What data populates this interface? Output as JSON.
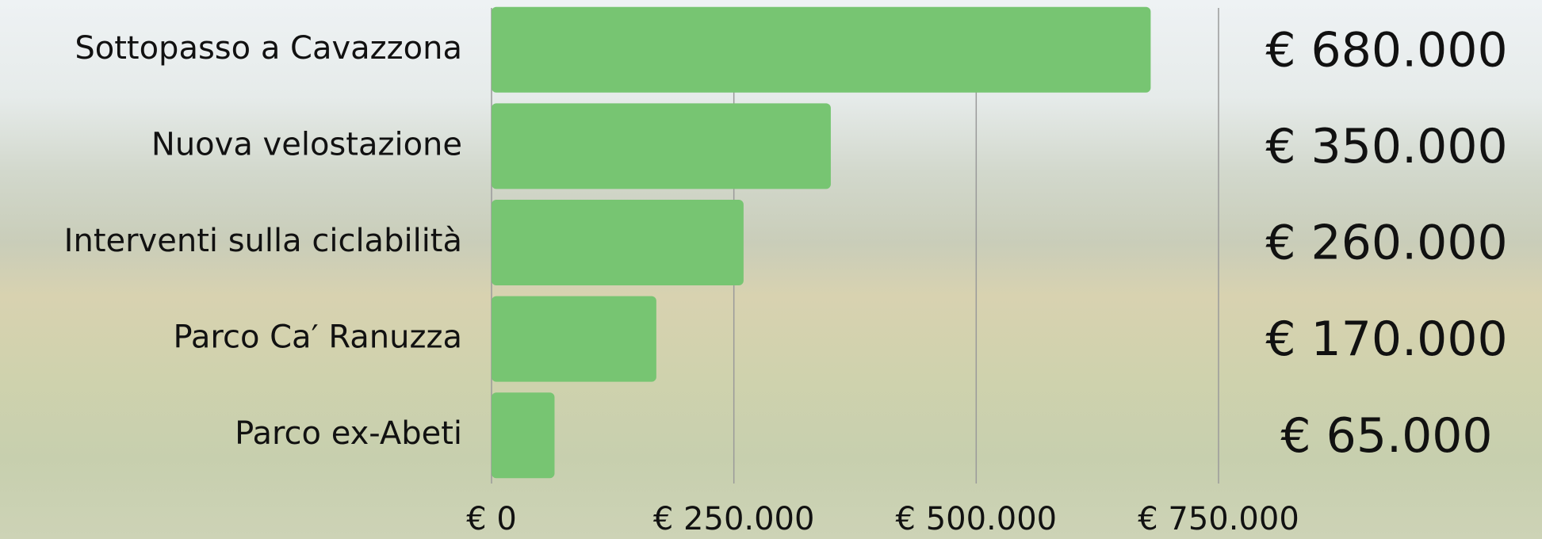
{
  "chart_data": {
    "type": "bar",
    "orientation": "horizontal",
    "categories": [
      "Sottopasso a Cavazzona",
      "Nuova velostazione",
      "Interventi sulla ciclabilità",
      "Parco Ca′ Ranuzza",
      "Parco ex-Abeti"
    ],
    "values": [
      680000,
      350000,
      260000,
      170000,
      65000
    ],
    "value_labels": [
      "€ 680.000",
      "€ 350.000",
      "€ 260.000",
      "€ 170.000",
      "€ 65.000"
    ],
    "color": "#77c572",
    "xlim": [
      0,
      750000
    ],
    "xticks": [
      {
        "value": 0,
        "label": "€ 0"
      },
      {
        "value": 250000,
        "label": "€ 250.000"
      },
      {
        "value": 500000,
        "label": "€ 500.000"
      },
      {
        "value": 750000,
        "label": "€ 750.000"
      }
    ],
    "grid": true
  }
}
